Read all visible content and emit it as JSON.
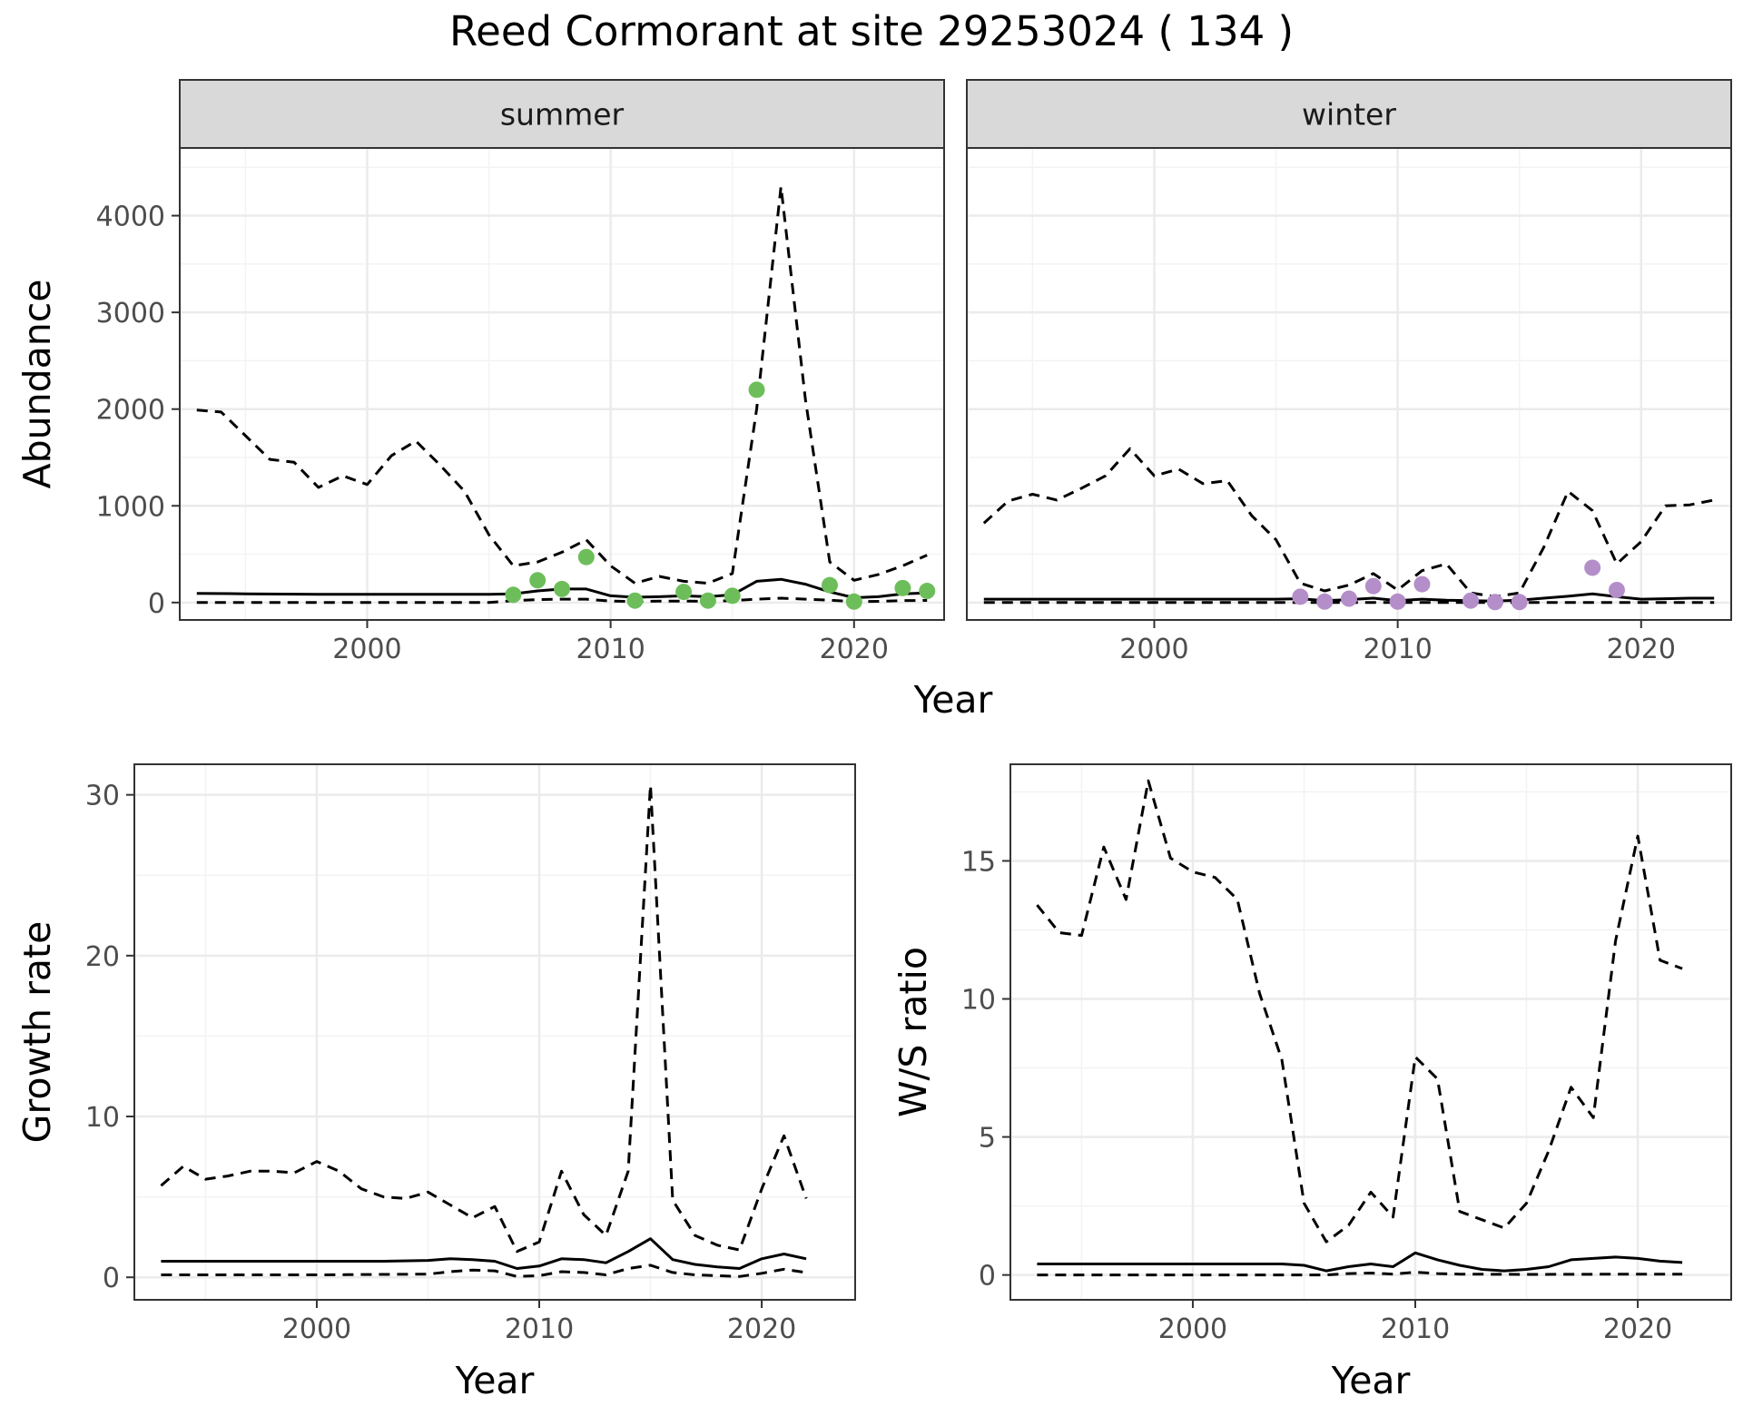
{
  "title": "Reed Cormorant at site 29253024 ( 134 )",
  "colors": {
    "summer_points": "#6dbe5a",
    "winter_points": "#b48ec9",
    "lines": "#000000",
    "grid_major": "#ebebeb",
    "grid_minor": "#f3f3f3",
    "strip_fill": "#d9d9d9",
    "strip_border": "#333333",
    "panel_border": "#333333"
  },
  "chart_data": [
    {
      "type": "line",
      "facet": "summer",
      "xlabel": "Year",
      "ylabel": "Abundance",
      "xlim": [
        1992.3,
        2023.7
      ],
      "ylim": [
        -180,
        4700
      ],
      "xticks": [
        2000,
        2010,
        2020
      ],
      "yticks": [
        0,
        1000,
        2000,
        3000,
        4000
      ],
      "grid": true,
      "series": [
        {
          "role": "estimate",
          "style": "solid",
          "x": [
            1993,
            1995,
            1998,
            2000,
            2003,
            2005,
            2006,
            2007,
            2008,
            2009,
            2010,
            2011,
            2012,
            2013,
            2014,
            2015,
            2016,
            2017,
            2018,
            2019,
            2020,
            2021,
            2022,
            2023
          ],
          "y": [
            95,
            90,
            85,
            85,
            85,
            85,
            90,
            120,
            140,
            140,
            70,
            55,
            60,
            70,
            60,
            80,
            220,
            240,
            190,
            110,
            50,
            60,
            90,
            100
          ]
        },
        {
          "role": "upper",
          "style": "dashed",
          "x": [
            1993,
            1994,
            1996,
            1997,
            1998,
            1999,
            2000,
            2001,
            2002,
            2003,
            2004,
            2005,
            2006,
            2007,
            2008,
            2009,
            2010,
            2011,
            2012,
            2013,
            2014,
            2015,
            2016,
            2017,
            2018,
            2019,
            2020,
            2021,
            2022,
            2023
          ],
          "y": [
            1990,
            1970,
            1480,
            1450,
            1190,
            1310,
            1220,
            1520,
            1670,
            1420,
            1150,
            700,
            380,
            420,
            520,
            650,
            380,
            200,
            270,
            220,
            200,
            300,
            2000,
            4300,
            2100,
            420,
            230,
            290,
            380,
            490
          ]
        },
        {
          "role": "lower",
          "style": "dashed",
          "x": [
            1993,
            1995,
            2000,
            2005,
            2006,
            2007,
            2008,
            2009,
            2010,
            2011,
            2012,
            2013,
            2014,
            2015,
            2016,
            2017,
            2018,
            2019,
            2020,
            2021,
            2022,
            2023
          ],
          "y": [
            0,
            0,
            0,
            0,
            20,
            30,
            35,
            35,
            15,
            10,
            15,
            15,
            12,
            20,
            35,
            45,
            35,
            25,
            10,
            12,
            20,
            22
          ]
        },
        {
          "role": "counts",
          "style": "points",
          "x": [
            2006,
            2007,
            2008,
            2009,
            2011,
            2013,
            2014,
            2015,
            2016,
            2019,
            2020,
            2022,
            2023
          ],
          "y": [
            80,
            230,
            140,
            470,
            20,
            110,
            20,
            70,
            2200,
            180,
            10,
            150,
            120
          ]
        }
      ]
    },
    {
      "type": "line",
      "facet": "winter",
      "xlabel": "Year",
      "ylabel": "Abundance",
      "xlim": [
        1992.3,
        2023.7
      ],
      "ylim": [
        -180,
        4700
      ],
      "xticks": [
        2000,
        2010,
        2020
      ],
      "yticks": [
        0,
        1000,
        2000,
        3000,
        4000
      ],
      "grid": true,
      "series": [
        {
          "role": "estimate",
          "style": "solid",
          "x": [
            1993,
            1995,
            2000,
            2005,
            2006,
            2007,
            2008,
            2009,
            2010,
            2011,
            2012,
            2013,
            2014,
            2015,
            2016,
            2017,
            2018,
            2019,
            2020,
            2021,
            2022,
            2023
          ],
          "y": [
            35,
            35,
            35,
            35,
            40,
            20,
            30,
            45,
            20,
            35,
            25,
            20,
            15,
            25,
            45,
            65,
            90,
            60,
            35,
            40,
            45,
            45
          ]
        },
        {
          "role": "upper",
          "style": "dashed",
          "x": [
            1993,
            1994,
            1995,
            1996,
            1997,
            1998,
            1999,
            2000,
            2001,
            2002,
            2003,
            2004,
            2005,
            2006,
            2007,
            2008,
            2009,
            2010,
            2011,
            2012,
            2013,
            2014,
            2015,
            2016,
            2017,
            2018,
            2019,
            2020,
            2021,
            2022,
            2023
          ],
          "y": [
            820,
            1050,
            1120,
            1060,
            1180,
            1310,
            1590,
            1310,
            1380,
            1230,
            1260,
            900,
            650,
            200,
            120,
            180,
            300,
            130,
            330,
            400,
            100,
            60,
            100,
            570,
            1150,
            950,
            400,
            630,
            1000,
            1010,
            1060
          ]
        },
        {
          "role": "lower",
          "style": "dashed",
          "x": [
            1993,
            2000,
            2005,
            2010,
            2015,
            2020,
            2023
          ],
          "y": [
            0,
            0,
            0,
            0,
            0,
            0,
            0
          ]
        },
        {
          "role": "counts",
          "style": "points",
          "x": [
            2006,
            2007,
            2008,
            2009,
            2010,
            2011,
            2013,
            2014,
            2015,
            2018,
            2019
          ],
          "y": [
            60,
            10,
            40,
            170,
            10,
            190,
            20,
            5,
            5,
            360,
            130
          ]
        }
      ]
    },
    {
      "type": "line",
      "xlabel": "Year",
      "ylabel": "Growth rate",
      "xlim": [
        1991.8,
        2024.2
      ],
      "ylim": [
        -1.4,
        31.9
      ],
      "xticks": [
        2000,
        2010,
        2020
      ],
      "yticks": [
        0,
        10,
        20,
        30
      ],
      "grid": true,
      "series": [
        {
          "role": "estimate",
          "style": "solid",
          "x": [
            1993,
            1995,
            2000,
            2003,
            2005,
            2006,
            2007,
            2008,
            2009,
            2010,
            2011,
            2012,
            2013,
            2014,
            2015,
            2016,
            2017,
            2018,
            2019,
            2020,
            2021,
            2022
          ],
          "y": [
            1.0,
            1.0,
            1.0,
            1.0,
            1.05,
            1.15,
            1.1,
            1.0,
            0.55,
            0.7,
            1.15,
            1.1,
            0.9,
            1.6,
            2.4,
            1.1,
            0.8,
            0.65,
            0.55,
            1.15,
            1.45,
            1.15
          ]
        },
        {
          "role": "upper",
          "style": "dashed",
          "x": [
            1993,
            1994,
            1995,
            1996,
            1997,
            1998,
            1999,
            2000,
            2001,
            2002,
            2003,
            2004,
            2005,
            2006,
            2007,
            2008,
            2009,
            2010,
            2011,
            2012,
            2013,
            2014,
            2015,
            2016,
            2017,
            2018,
            2019,
            2020,
            2021,
            2022
          ],
          "y": [
            5.7,
            6.9,
            6.1,
            6.3,
            6.6,
            6.6,
            6.5,
            7.2,
            6.6,
            5.5,
            5.0,
            4.9,
            5.3,
            4.5,
            3.7,
            4.4,
            1.6,
            2.2,
            6.6,
            3.9,
            2.6,
            6.6,
            30.6,
            4.8,
            2.6,
            2.0,
            1.7,
            5.5,
            8.8,
            4.9
          ]
        },
        {
          "role": "lower",
          "style": "dashed",
          "x": [
            1993,
            2000,
            2005,
            2006,
            2007,
            2008,
            2009,
            2010,
            2011,
            2012,
            2013,
            2014,
            2015,
            2016,
            2017,
            2018,
            2019,
            2020,
            2021,
            2022
          ],
          "y": [
            0.15,
            0.15,
            0.2,
            0.35,
            0.45,
            0.4,
            0.05,
            0.1,
            0.35,
            0.3,
            0.15,
            0.55,
            0.75,
            0.3,
            0.15,
            0.1,
            0.05,
            0.25,
            0.5,
            0.3
          ]
        }
      ]
    },
    {
      "type": "line",
      "xlabel": "Year",
      "ylabel": "W/S ratio",
      "xlim": [
        1991.8,
        2024.2
      ],
      "ylim": [
        -0.9,
        18.5
      ],
      "xticks": [
        2000,
        2010,
        2020
      ],
      "yticks": [
        0,
        5,
        10,
        15
      ],
      "grid": true,
      "series": [
        {
          "role": "estimate",
          "style": "solid",
          "x": [
            1993,
            1995,
            2000,
            2004,
            2005,
            2006,
            2007,
            2008,
            2009,
            2010,
            2011,
            2012,
            2013,
            2014,
            2015,
            2016,
            2017,
            2018,
            2019,
            2020,
            2021,
            2022
          ],
          "y": [
            0.4,
            0.4,
            0.4,
            0.4,
            0.35,
            0.15,
            0.3,
            0.4,
            0.3,
            0.8,
            0.55,
            0.35,
            0.2,
            0.15,
            0.2,
            0.3,
            0.55,
            0.6,
            0.65,
            0.6,
            0.5,
            0.45
          ]
        },
        {
          "role": "upper",
          "style": "dashed",
          "x": [
            1993,
            1994,
            1995,
            1996,
            1997,
            1998,
            1999,
            2000,
            2001,
            2002,
            2003,
            2004,
            2005,
            2006,
            2007,
            2008,
            2009,
            2010,
            2011,
            2012,
            2013,
            2014,
            2015,
            2016,
            2017,
            2018,
            2019,
            2020,
            2021,
            2022
          ],
          "y": [
            13.4,
            12.4,
            12.3,
            15.5,
            13.6,
            17.9,
            15.1,
            14.6,
            14.4,
            13.6,
            10.2,
            7.8,
            2.6,
            1.2,
            1.8,
            3.0,
            2.1,
            7.9,
            7.1,
            2.3,
            2.0,
            1.7,
            2.6,
            4.5,
            6.8,
            5.7,
            12.1,
            15.9,
            11.4,
            11.1
          ]
        },
        {
          "role": "lower",
          "style": "dashed",
          "x": [
            1993,
            2000,
            2005,
            2006,
            2007,
            2008,
            2009,
            2010,
            2011,
            2012,
            2015,
            2020,
            2022
          ],
          "y": [
            0,
            0,
            0,
            0,
            0.05,
            0.07,
            0.03,
            0.1,
            0.05,
            0.03,
            0.02,
            0.03,
            0.03
          ]
        }
      ]
    }
  ]
}
